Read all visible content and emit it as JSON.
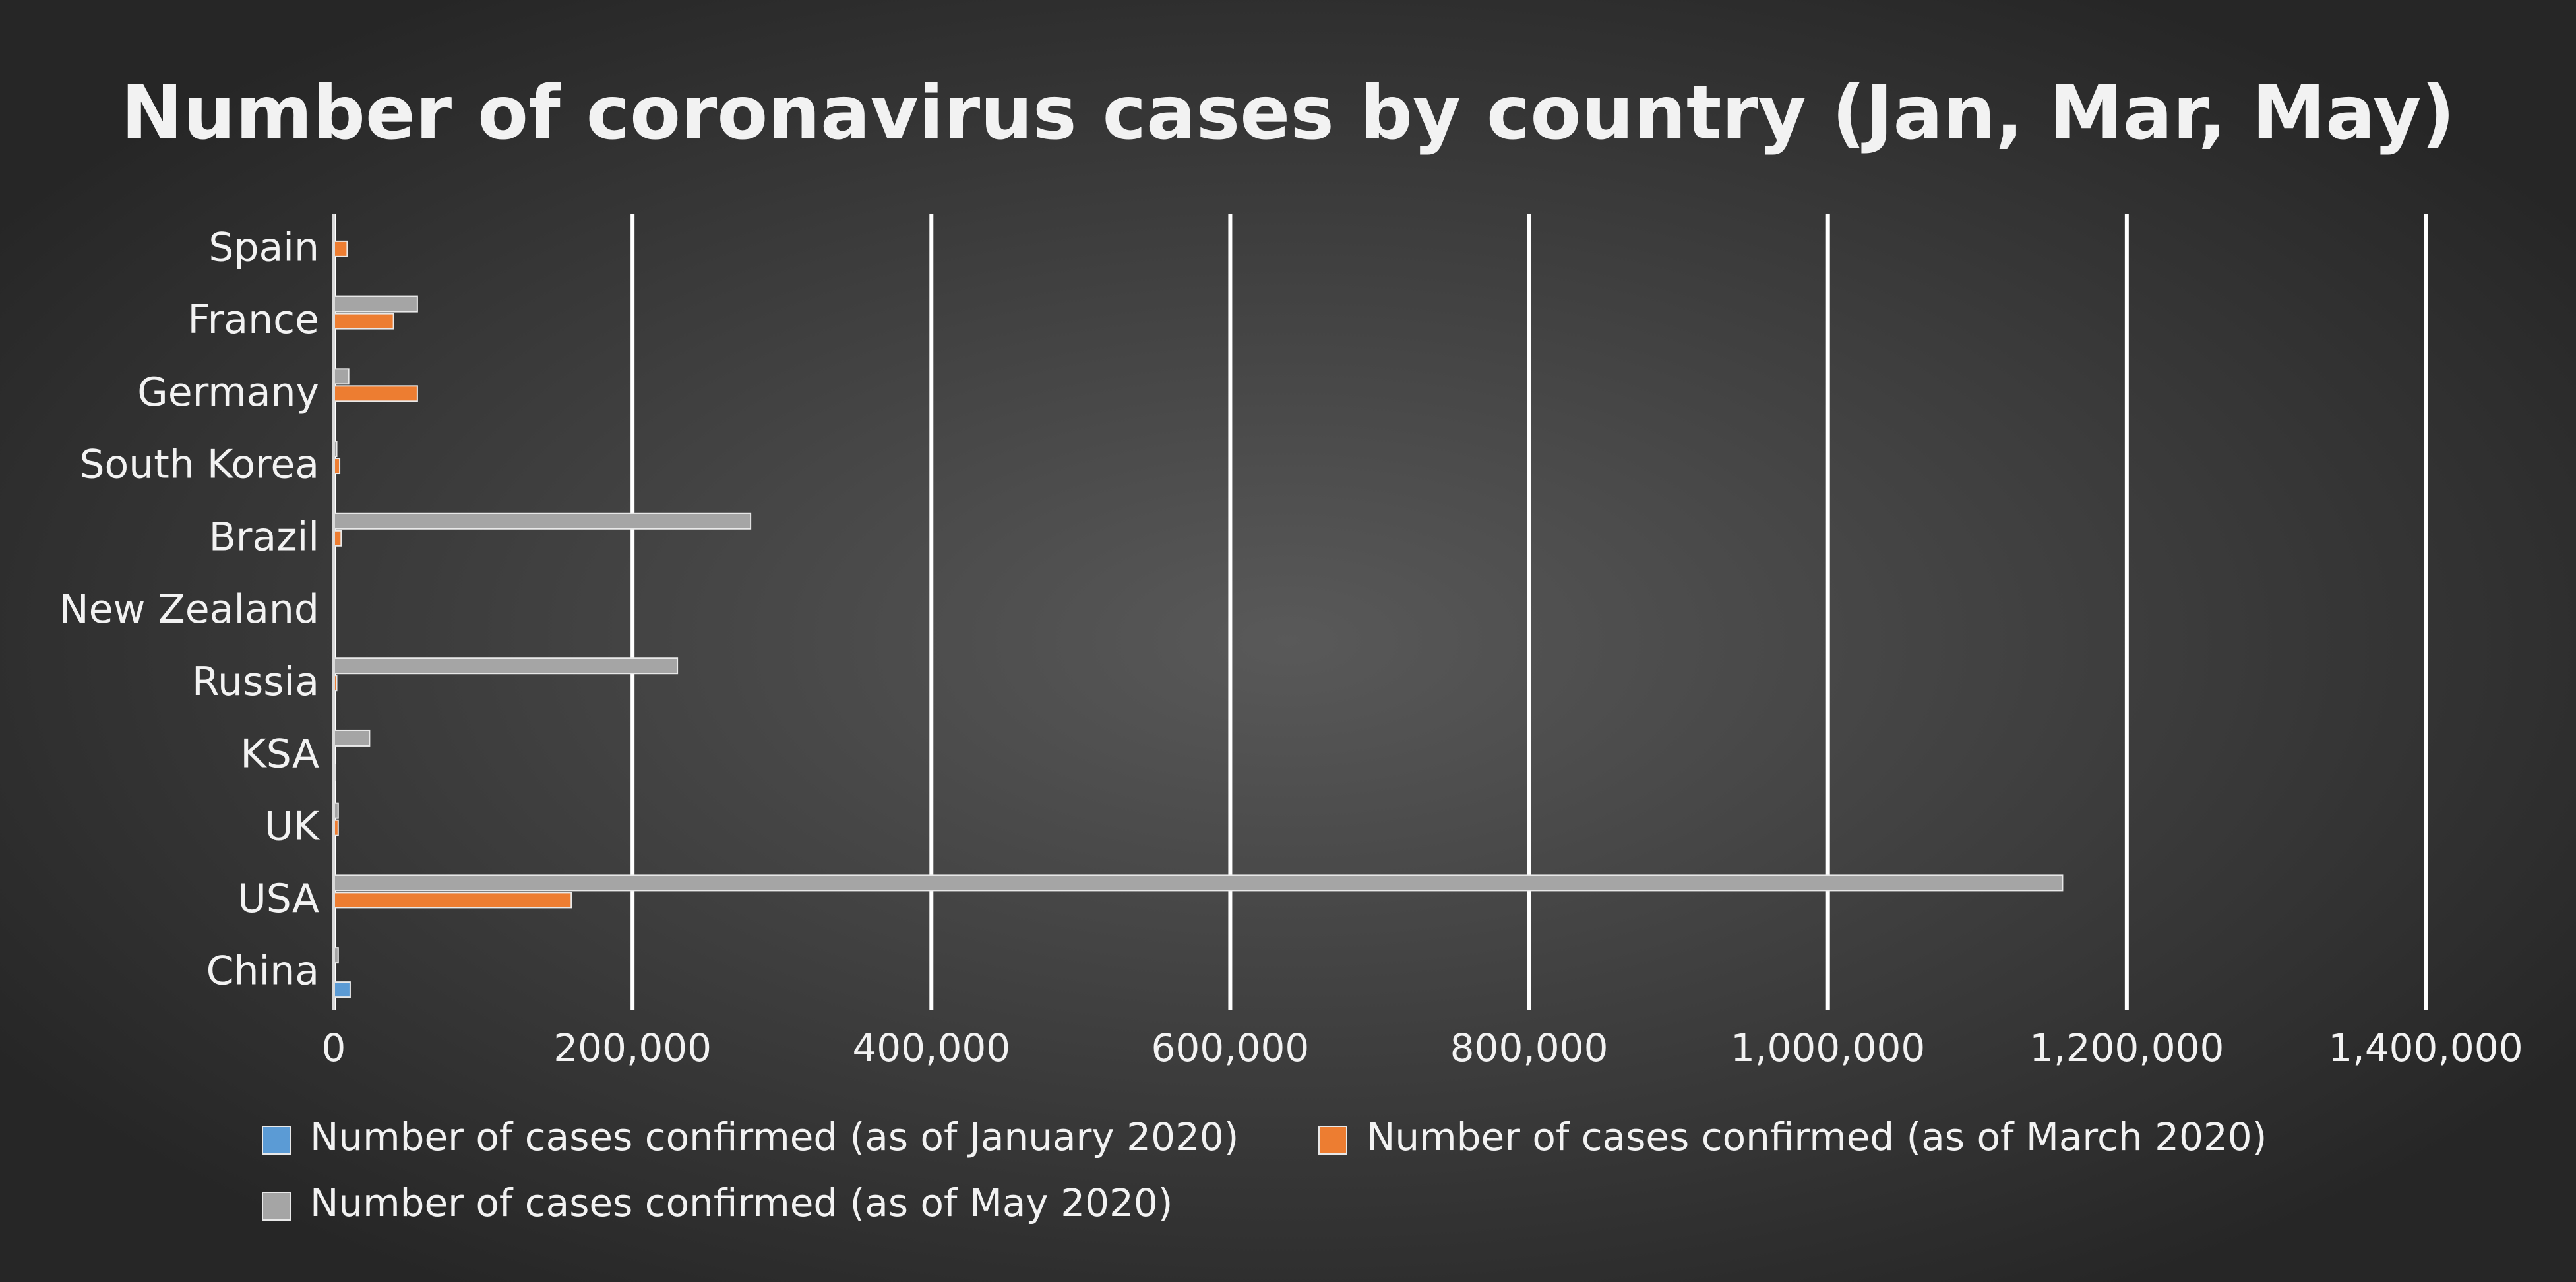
{
  "chart_data": {
    "type": "hbar",
    "title": "Number of coronavirus cases by country (Jan, Mar, May)",
    "categories": [
      "China",
      "USA",
      "UK",
      "KSA",
      "Russia ",
      "New Zealand",
      "Brazil",
      "South Korea",
      "Germany",
      "France",
      "Spain"
    ],
    "series": [
      {
        "name": "Number of cases confirmed (as of January 2020)",
        "color": "#5b9bd5",
        "values": [
          11000,
          0,
          0,
          1000,
          0,
          0,
          0,
          0,
          0,
          0,
          0
        ]
      },
      {
        "name": "Number of cases confirmed (as of March 2020)",
        "color": "#ed7d31",
        "values": [
          0,
          159000,
          3000,
          0,
          2000,
          0,
          5000,
          4000,
          56000,
          40000,
          9000
        ]
      },
      {
        "name": "Number of cases confirmed (as of May 2020)",
        "color": "#a5a5a5",
        "values": [
          3000,
          1157000,
          3000,
          24000,
          230000,
          0,
          279000,
          2000,
          10000,
          56000,
          0
        ]
      }
    ],
    "xlim": [
      0,
      1400000
    ],
    "xticks": [
      0,
      {
        "value": 200000,
        "label": "200,000"
      },
      {
        "value": 400000,
        "label": "400,000"
      },
      {
        "value": 600000,
        "label": "600,000"
      },
      {
        "value": 800000,
        "label": "800,000"
      },
      {
        "value": 1000000,
        "label": "1,000,000"
      },
      {
        "value": 1200000,
        "label": "1,200,000"
      },
      {
        "value": 1400000,
        "label": "1,400,000"
      }
    ],
    "grid": true
  }
}
